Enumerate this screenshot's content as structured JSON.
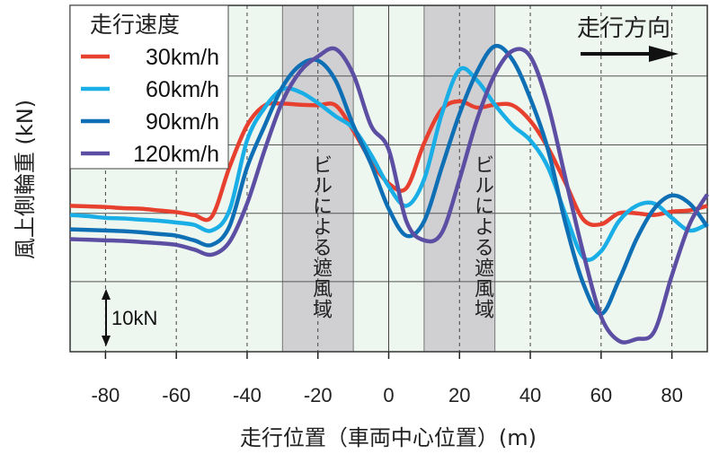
{
  "chart_data": {
    "type": "line",
    "title": "",
    "xlabel": "走行位置（車両中心位置）(m)",
    "ylabel": "風上側輪重 (kN)",
    "xlim": [
      -90,
      90
    ],
    "ylim": [
      -24.1,
      36.2
    ],
    "xticks": [
      -80,
      -60,
      -40,
      -20,
      0,
      20,
      40,
      60,
      80
    ],
    "xtick_labels": [
      "-80",
      "-60",
      "-40",
      "-20",
      "0",
      "20",
      "40",
      "60",
      "80"
    ],
    "ygrid": [
      -11.9,
      0,
      11.9,
      23.9
    ],
    "grid": true,
    "legend_title": "走行速度",
    "legend_position": "top-left",
    "scale_bar_label": "10kN",
    "scale_bar_value": 10,
    "direction_label": "走行方向",
    "shaded_regions": [
      {
        "from": -30,
        "to": -10,
        "label": "ビルによる遮風域"
      },
      {
        "from": 10,
        "to": 30,
        "label": "ビルによる遮風域"
      }
    ],
    "x": [
      -90,
      -85,
      -80,
      -75,
      -70,
      -65,
      -60,
      -55,
      -50,
      -45,
      -40,
      -35,
      -30,
      -25,
      -20,
      -15,
      -10,
      -5,
      0,
      5,
      10,
      15,
      20,
      25,
      30,
      35,
      40,
      45,
      50,
      55,
      60,
      65,
      70,
      75,
      80,
      85,
      90
    ],
    "series": [
      {
        "name": "30km/h",
        "color": "#e8402f",
        "values": [
          1.3,
          1.2,
          1.1,
          0.9,
          0.8,
          0.5,
          0.2,
          -0.3,
          -0.6,
          8.0,
          15.3,
          18.8,
          19.1,
          18.9,
          18.8,
          18.8,
          14.4,
          9.1,
          5.2,
          4.4,
          12.2,
          18.1,
          19.5,
          18.4,
          18.9,
          18.8,
          16.1,
          11.4,
          5.2,
          -1.1,
          -1.9,
          0,
          0,
          -0.3,
          0.3,
          0.5,
          1.3
        ]
      },
      {
        "name": "60km/h",
        "color": "#1aaee6",
        "values": [
          -0.3,
          -0.5,
          -0.8,
          -0.9,
          -1.1,
          -1.3,
          -1.6,
          -2.0,
          -3.0,
          0.5,
          12.7,
          18.4,
          21.6,
          21.1,
          19.2,
          16.9,
          14.8,
          10.2,
          4.7,
          1.3,
          5.9,
          17.3,
          25.0,
          23.1,
          18.9,
          15.3,
          12.7,
          8.0,
          -0.3,
          -7.7,
          -6.6,
          -1.4,
          1.3,
          1.7,
          -0.8,
          -3.0,
          -1.9
        ]
      },
      {
        "name": "90km/h",
        "color": "#0f6fb5",
        "values": [
          -2.8,
          -2.9,
          -3.0,
          -3.1,
          -3.3,
          -3.6,
          -3.9,
          -4.7,
          -5.5,
          -2.3,
          8.0,
          15.3,
          22.0,
          25.8,
          26.6,
          23.1,
          15.3,
          8.6,
          0.8,
          -3.9,
          -1.4,
          8.0,
          17.3,
          24.7,
          29.1,
          26.7,
          20.0,
          11.1,
          -1.9,
          -12.3,
          -17.5,
          -11.7,
          -4.5,
          0.8,
          3.1,
          1.7,
          -2.3
        ]
      },
      {
        "name": "120km/h",
        "color": "#5c4fa3",
        "values": [
          -4.5,
          -4.6,
          -4.7,
          -4.8,
          -5.0,
          -5.2,
          -5.5,
          -6.3,
          -7.2,
          -5.0,
          1.7,
          11.1,
          19.5,
          24.7,
          27.3,
          28.6,
          24.2,
          15.3,
          11.1,
          -1.4,
          -4.7,
          -3.4,
          5.9,
          16.4,
          24.2,
          28.3,
          27.3,
          18.9,
          5.9,
          -7.0,
          -18.0,
          -22.2,
          -21.9,
          -20.6,
          -10.8,
          -1.9,
          3.3
        ]
      }
    ]
  }
}
